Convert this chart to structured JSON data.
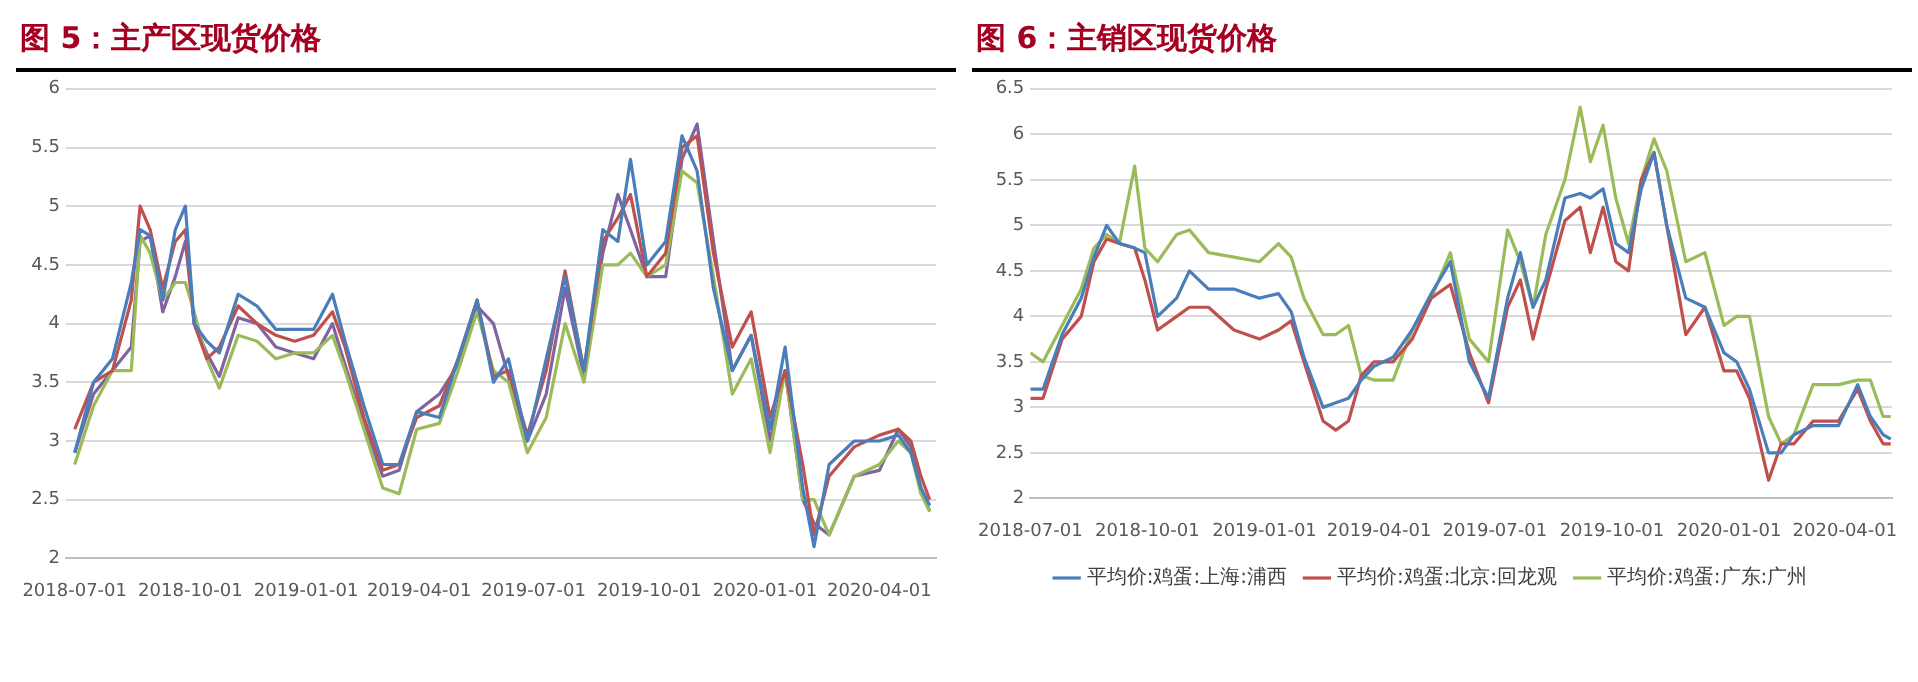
{
  "chart_data": [
    {
      "type": "line",
      "title": "图 5：主产区现货价格",
      "x": [
        "2018-07-01",
        "2018-07-16",
        "2018-07-31",
        "2018-08-15",
        "2018-08-22",
        "2018-08-30",
        "2018-09-09",
        "2018-09-19",
        "2018-09-27",
        "2018-10-04",
        "2018-10-14",
        "2018-10-24",
        "2018-11-08",
        "2018-11-23",
        "2018-12-08",
        "2018-12-23",
        "2019-01-07",
        "2019-01-22",
        "2019-02-01",
        "2019-02-16",
        "2019-03-03",
        "2019-03-16",
        "2019-03-30",
        "2019-04-17",
        "2019-05-02",
        "2019-05-17",
        "2019-05-30",
        "2019-06-11",
        "2019-06-26",
        "2019-07-11",
        "2019-07-26",
        "2019-08-10",
        "2019-08-25",
        "2019-09-06",
        "2019-09-16",
        "2019-09-29",
        "2019-10-14",
        "2019-10-27",
        "2019-11-08",
        "2019-11-21",
        "2019-12-06",
        "2019-12-21",
        "2020-01-05",
        "2020-01-17",
        "2020-01-31",
        "2020-02-09",
        "2020-02-21",
        "2020-03-12",
        "2020-04-01",
        "2020-04-16",
        "2020-04-26",
        "2020-05-04",
        "2020-05-11"
      ],
      "series": [
        {
          "color": "#4a7ebb",
          "values": [
            2.9,
            3.5,
            3.7,
            4.35,
            4.8,
            4.75,
            4.2,
            4.8,
            5.0,
            4.0,
            3.85,
            3.75,
            4.25,
            4.15,
            3.95,
            3.95,
            3.95,
            4.25,
            3.85,
            3.3,
            2.8,
            2.8,
            3.25,
            3.2,
            3.7,
            4.2,
            3.5,
            3.7,
            3.0,
            3.7,
            4.4,
            3.6,
            4.8,
            4.7,
            5.4,
            4.5,
            4.7,
            5.6,
            5.3,
            4.3,
            3.6,
            3.9,
            3.1,
            3.8,
            2.6,
            2.1,
            2.8,
            3.0,
            3.0,
            3.05,
            2.9,
            2.6,
            2.45
          ]
        },
        {
          "color": "#c0504d",
          "values": [
            3.1,
            3.5,
            3.6,
            4.2,
            5.0,
            4.8,
            4.3,
            4.7,
            4.8,
            4.0,
            3.7,
            3.8,
            4.15,
            4.0,
            3.9,
            3.85,
            3.9,
            4.1,
            3.8,
            3.2,
            2.75,
            2.8,
            3.2,
            3.3,
            3.7,
            4.2,
            3.55,
            3.6,
            3.05,
            3.6,
            4.45,
            3.6,
            4.7,
            4.9,
            5.1,
            4.4,
            4.6,
            5.5,
            5.6,
            4.6,
            3.8,
            4.1,
            3.2,
            3.6,
            2.8,
            2.2,
            2.7,
            2.95,
            3.05,
            3.1,
            3.0,
            2.7,
            2.5
          ]
        },
        {
          "color": "#9bbb59",
          "values": [
            2.8,
            3.3,
            3.6,
            3.6,
            4.75,
            4.6,
            4.2,
            4.35,
            4.35,
            4.1,
            3.7,
            3.45,
            3.9,
            3.85,
            3.7,
            3.75,
            3.75,
            3.9,
            3.6,
            3.1,
            2.6,
            2.55,
            3.1,
            3.15,
            3.6,
            4.1,
            3.6,
            3.5,
            2.9,
            3.2,
            4.0,
            3.5,
            4.5,
            4.5,
            4.6,
            4.4,
            4.5,
            5.3,
            5.2,
            4.4,
            3.4,
            3.7,
            2.9,
            3.6,
            2.5,
            2.5,
            2.2,
            2.7,
            2.8,
            3.0,
            2.9,
            2.55,
            2.4
          ]
        },
        {
          "color": "#8064a2",
          "values": [
            2.9,
            3.4,
            3.6,
            3.8,
            4.7,
            4.75,
            4.1,
            4.4,
            4.7,
            4.0,
            3.75,
            3.55,
            4.05,
            4.0,
            3.8,
            3.75,
            3.7,
            4.0,
            3.65,
            3.15,
            2.7,
            2.75,
            3.25,
            3.4,
            3.65,
            4.15,
            4.0,
            3.55,
            3.0,
            3.4,
            4.3,
            3.55,
            4.6,
            5.1,
            4.8,
            4.4,
            4.4,
            5.4,
            5.7,
            4.7,
            3.6,
            3.9,
            3.0,
            3.6,
            2.5,
            2.3,
            2.2,
            2.7,
            2.75,
            3.1,
            2.95,
            2.6,
            2.4
          ]
        }
      ],
      "xlim": [
        "2018-06-24",
        "2020-05-16"
      ],
      "xticks": [
        "2018-07-01",
        "2018-10-01",
        "2019-01-01",
        "2019-04-01",
        "2019-07-01",
        "2019-10-01",
        "2020-01-01",
        "2020-04-01"
      ],
      "ylim": [
        2,
        6
      ],
      "yticks": [
        2,
        2.5,
        3,
        3.5,
        4,
        4.5,
        5,
        5.5,
        6
      ],
      "grid": "y",
      "legend": false
    },
    {
      "type": "line",
      "title": "图 6：主销区现货价格",
      "x": [
        "2018-07-01",
        "2018-07-11",
        "2018-07-26",
        "2018-08-10",
        "2018-08-20",
        "2018-08-30",
        "2018-09-09",
        "2018-09-21",
        "2018-09-29",
        "2018-10-09",
        "2018-10-24",
        "2018-11-03",
        "2018-11-18",
        "2018-12-08",
        "2018-12-28",
        "2019-01-12",
        "2019-01-22",
        "2019-02-01",
        "2019-02-16",
        "2019-02-26",
        "2019-03-08",
        "2019-03-18",
        "2019-03-28",
        "2019-04-12",
        "2019-04-27",
        "2019-05-12",
        "2019-05-27",
        "2019-06-11",
        "2019-06-26",
        "2019-07-11",
        "2019-07-21",
        "2019-07-31",
        "2019-08-10",
        "2019-08-25",
        "2019-09-06",
        "2019-09-14",
        "2019-09-24",
        "2019-10-04",
        "2019-10-14",
        "2019-10-24",
        "2019-11-03",
        "2019-11-13",
        "2019-11-28",
        "2019-12-13",
        "2019-12-28",
        "2020-01-07",
        "2020-01-17",
        "2020-02-01",
        "2020-02-11",
        "2020-02-21",
        "2020-03-07",
        "2020-03-27",
        "2020-04-11",
        "2020-04-21",
        "2020-05-01",
        "2020-05-07"
      ],
      "series": [
        {
          "name": "平均价:鸡蛋:上海:浦西",
          "color": "#4a7ebb",
          "values": [
            3.2,
            3.2,
            3.8,
            4.2,
            4.65,
            5.0,
            4.8,
            4.75,
            4.7,
            4.0,
            4.2,
            4.5,
            4.3,
            4.3,
            4.2,
            4.25,
            4.05,
            3.55,
            3.0,
            3.05,
            3.1,
            3.3,
            3.45,
            3.55,
            3.85,
            4.25,
            4.6,
            3.5,
            3.1,
            4.2,
            4.7,
            4.1,
            4.4,
            5.3,
            5.35,
            5.3,
            5.4,
            4.8,
            4.7,
            5.4,
            5.8,
            5.0,
            4.2,
            4.1,
            3.6,
            3.5,
            3.2,
            2.5,
            2.5,
            2.7,
            2.8,
            2.8,
            3.25,
            2.9,
            2.7,
            2.65
          ]
        },
        {
          "name": "平均价:鸡蛋:北京:回龙观",
          "color": "#c0504d",
          "values": [
            3.1,
            3.1,
            3.75,
            4.0,
            4.6,
            4.85,
            4.8,
            4.75,
            4.4,
            3.85,
            4.0,
            4.1,
            4.1,
            3.85,
            3.75,
            3.85,
            3.95,
            3.5,
            2.85,
            2.75,
            2.85,
            3.35,
            3.5,
            3.5,
            3.75,
            4.2,
            4.35,
            3.6,
            3.05,
            4.1,
            4.4,
            3.75,
            4.3,
            5.05,
            5.2,
            4.7,
            5.2,
            4.6,
            4.5,
            5.5,
            5.8,
            5.0,
            3.8,
            4.1,
            3.4,
            3.4,
            3.1,
            2.2,
            2.6,
            2.6,
            2.85,
            2.85,
            3.2,
            2.85,
            2.6,
            2.6
          ]
        },
        {
          "name": "平均价:鸡蛋:广东:广州",
          "color": "#9bbb59",
          "values": [
            3.6,
            3.5,
            3.9,
            4.3,
            4.75,
            4.9,
            4.8,
            5.65,
            4.75,
            4.6,
            4.9,
            4.95,
            4.7,
            4.65,
            4.6,
            4.8,
            4.65,
            4.2,
            3.8,
            3.8,
            3.9,
            3.35,
            3.3,
            3.3,
            3.85,
            4.2,
            4.7,
            3.75,
            3.5,
            4.95,
            4.6,
            4.1,
            4.9,
            5.5,
            6.3,
            5.7,
            6.1,
            5.3,
            4.8,
            5.5,
            5.95,
            5.6,
            4.6,
            4.7,
            3.9,
            4.0,
            4.0,
            2.9,
            2.6,
            2.7,
            3.25,
            3.25,
            3.3,
            3.3,
            2.9,
            2.9
          ]
        }
      ],
      "xlim": [
        "2018-07-01",
        "2020-05-08"
      ],
      "xticks": [
        "2018-07-01",
        "2018-10-01",
        "2019-01-01",
        "2019-04-01",
        "2019-07-01",
        "2019-10-01",
        "2020-01-01",
        "2020-04-01"
      ],
      "ylim": [
        2,
        6.5
      ],
      "yticks": [
        2,
        2.5,
        3,
        3.5,
        4,
        4.5,
        5,
        5.5,
        6,
        6.5
      ],
      "grid": "y",
      "legend": "bottom"
    }
  ]
}
